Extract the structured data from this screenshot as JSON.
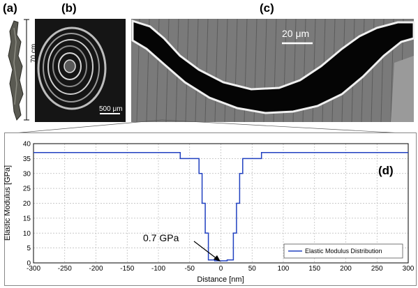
{
  "panels": {
    "a": "(a)",
    "b": "(b)",
    "c": "(c)",
    "d": "(d)"
  },
  "image_labels": {
    "height": "70 cm",
    "scale_b": "500 μm",
    "scale_c": "20 μm"
  },
  "colors": {
    "series": "#2040c0",
    "grid": "#b8b8b8",
    "background_dark": "#1a1a1a"
  },
  "chart_data": {
    "type": "line",
    "xlabel": "Distance [nm]",
    "ylabel": "Elastic Modulus [GPa]",
    "xlim": [
      -300,
      300
    ],
    "ylim": [
      0,
      40
    ],
    "xticks": [
      -300,
      -250,
      -200,
      -150,
      -100,
      -50,
      0,
      50,
      100,
      150,
      200,
      250,
      300
    ],
    "yticks": [
      0,
      5,
      10,
      15,
      20,
      25,
      30,
      35,
      40
    ],
    "grid": true,
    "legend_position": "bottom-right",
    "series": [
      {
        "name": "Elastic Modulus Distribution",
        "x": [
          -300,
          -65,
          -65,
          -35,
          -35,
          -30,
          -30,
          -25,
          -25,
          -20,
          -20,
          -10,
          -10,
          10,
          10,
          20,
          20,
          25,
          25,
          30,
          30,
          35,
          35,
          65,
          65,
          300
        ],
        "y": [
          37,
          37,
          35,
          35,
          30,
          30,
          20,
          20,
          10,
          10,
          1,
          1,
          0.7,
          0.7,
          1,
          1,
          10,
          10,
          20,
          20,
          30,
          30,
          35,
          35,
          37,
          37
        ]
      }
    ],
    "annotation": "0.7 GPa"
  }
}
